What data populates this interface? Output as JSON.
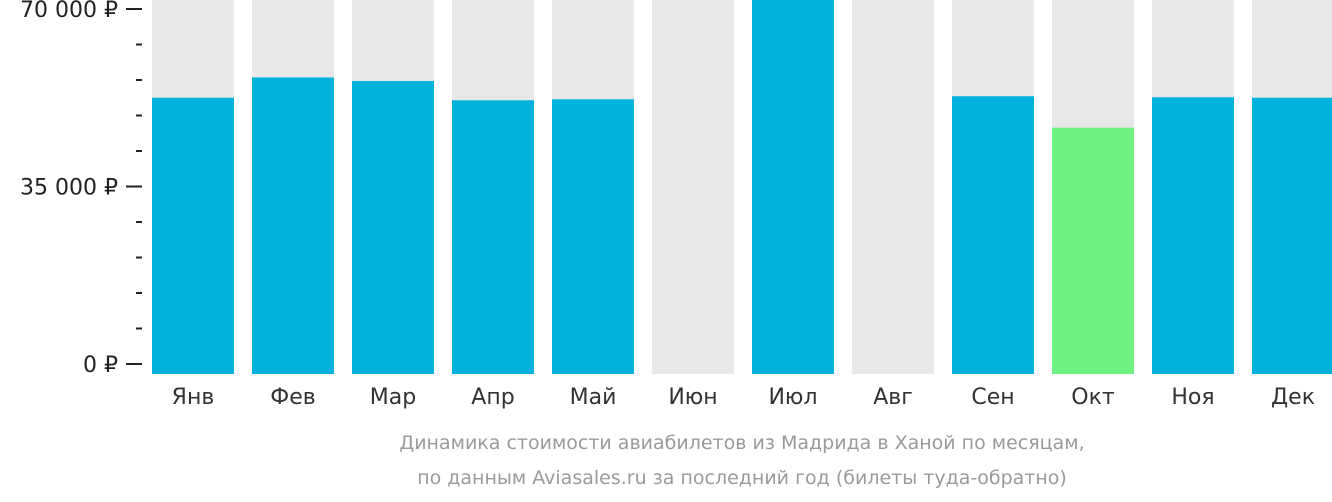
{
  "chart_data": {
    "type": "bar",
    "categories": [
      "Янв",
      "Фев",
      "Мар",
      "Апр",
      "Май",
      "Июн",
      "Июл",
      "Авг",
      "Сен",
      "Окт",
      "Ноя",
      "Дек"
    ],
    "values": [
      52500,
      56500,
      55800,
      52000,
      52200,
      null,
      73200,
      null,
      52800,
      46600,
      52600,
      52500
    ],
    "ylim": [
      0,
      70000
    ],
    "yticks": [
      {
        "value": 0,
        "label": "0 ₽"
      },
      {
        "value": 35000,
        "label": "35 000 ₽"
      },
      {
        "value": 70000,
        "label": "70 000 ₽"
      }
    ],
    "minor_tick_step": 7000,
    "highlight_index": 9,
    "grid": false,
    "legend": "none"
  },
  "caption": {
    "line1": "Динамика стоимости авиабилетов из Мадрида в Ханой по месяцам,",
    "line2": "по данным Aviasales.ru за последний год (билеты туда-обратно)"
  },
  "colors": {
    "bar": "#00b0dd",
    "highlight": "#6df384",
    "background_bar": "#e8e8e8",
    "axis": "#222222"
  }
}
